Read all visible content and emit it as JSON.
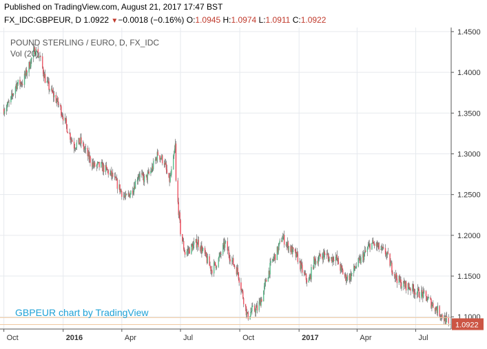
{
  "header": {
    "published": "Published on TradingView.com, August 21, 2017 17:47 BST",
    "symbol": "FX_IDC:GBPEUR, D",
    "last": "1.0922",
    "change": "−0.0018 (−0.16%)",
    "o_label": "O:",
    "o_value": "1.0945",
    "h_label": "H:",
    "h_value": "1.0974",
    "l_label": "L:",
    "l_value": "1.0911",
    "c_label": "C:",
    "c_value": "1.0922"
  },
  "colors": {
    "up": "#53b987",
    "down": "#eb4d5c",
    "badge": "#cc5544",
    "watermark": "#1ea1d6",
    "grid": "#e6e9ee"
  },
  "chart_data": {
    "type": "candlestick",
    "title": "POUND STERLING / EURO, D, FX_IDC",
    "subtitle": "Vol (20)",
    "watermark": "GBPEUR chart by TradingView",
    "y_ticks": [
      "1.4500",
      "1.4000",
      "1.3500",
      "1.3000",
      "1.2500",
      "1.2000",
      "1.1500",
      "1.1000"
    ],
    "ylim": [
      1.085,
      1.455
    ],
    "x_ticks": [
      "Oct",
      "2016",
      "Apr",
      "Jul",
      "Oct",
      "2017",
      "Apr",
      "Jul"
    ],
    "last_price_label": "1.0922",
    "last_price": 1.0922,
    "reference_level": 1.099,
    "anchors": [
      [
        "2015-10-01",
        1.355
      ],
      [
        "2015-10-10",
        1.362
      ],
      [
        "2015-10-20",
        1.385
      ],
      [
        "2015-10-30",
        1.388
      ],
      [
        "2015-11-10",
        1.41
      ],
      [
        "2015-11-18",
        1.428
      ],
      [
        "2015-11-26",
        1.418
      ],
      [
        "2015-12-04",
        1.392
      ],
      [
        "2015-12-12",
        1.378
      ],
      [
        "2015-12-20",
        1.368
      ],
      [
        "2015-12-28",
        1.355
      ],
      [
        "2016-01-08",
        1.33
      ],
      [
        "2016-01-18",
        1.31
      ],
      [
        "2016-01-28",
        1.315
      ],
      [
        "2016-02-08",
        1.298
      ],
      [
        "2016-02-18",
        1.285
      ],
      [
        "2016-02-28",
        1.285
      ],
      [
        "2016-03-08",
        1.28
      ],
      [
        "2016-03-18",
        1.272
      ],
      [
        "2016-03-28",
        1.258
      ],
      [
        "2016-04-07",
        1.245
      ],
      [
        "2016-04-17",
        1.255
      ],
      [
        "2016-04-27",
        1.275
      ],
      [
        "2016-05-07",
        1.268
      ],
      [
        "2016-05-17",
        1.28
      ],
      [
        "2016-05-27",
        1.3
      ],
      [
        "2016-06-06",
        1.29
      ],
      [
        "2016-06-13",
        1.265
      ],
      [
        "2016-06-18",
        1.28
      ],
      [
        "2016-06-23",
        1.31
      ],
      [
        "2016-06-24",
        1.265
      ],
      [
        "2016-07-01",
        1.205
      ],
      [
        "2016-07-08",
        1.178
      ],
      [
        "2016-07-18",
        1.185
      ],
      [
        "2016-07-28",
        1.192
      ],
      [
        "2016-08-08",
        1.175
      ],
      [
        "2016-08-18",
        1.158
      ],
      [
        "2016-08-28",
        1.168
      ],
      [
        "2016-09-08",
        1.19
      ],
      [
        "2016-09-18",
        1.17
      ],
      [
        "2016-09-28",
        1.155
      ],
      [
        "2016-10-06",
        1.125
      ],
      [
        "2016-10-13",
        1.1
      ],
      [
        "2016-10-20",
        1.108
      ],
      [
        "2016-10-28",
        1.11
      ],
      [
        "2016-11-05",
        1.125
      ],
      [
        "2016-11-12",
        1.148
      ],
      [
        "2016-11-20",
        1.168
      ],
      [
        "2016-11-28",
        1.18
      ],
      [
        "2016-12-06",
        1.198
      ],
      [
        "2016-12-14",
        1.188
      ],
      [
        "2016-12-22",
        1.18
      ],
      [
        "2016-12-30",
        1.172
      ],
      [
        "2017-01-08",
        1.152
      ],
      [
        "2017-01-16",
        1.142
      ],
      [
        "2017-01-24",
        1.168
      ],
      [
        "2017-02-01",
        1.172
      ],
      [
        "2017-02-10",
        1.178
      ],
      [
        "2017-02-18",
        1.17
      ],
      [
        "2017-02-26",
        1.175
      ],
      [
        "2017-03-06",
        1.16
      ],
      [
        "2017-03-14",
        1.148
      ],
      [
        "2017-03-22",
        1.15
      ],
      [
        "2017-03-30",
        1.162
      ],
      [
        "2017-04-07",
        1.17
      ],
      [
        "2017-04-15",
        1.18
      ],
      [
        "2017-04-22",
        1.19
      ],
      [
        "2017-04-30",
        1.188
      ],
      [
        "2017-05-08",
        1.182
      ],
      [
        "2017-05-16",
        1.178
      ],
      [
        "2017-05-24",
        1.162
      ],
      [
        "2017-06-01",
        1.148
      ],
      [
        "2017-06-09",
        1.14
      ],
      [
        "2017-06-17",
        1.138
      ],
      [
        "2017-06-25",
        1.135
      ],
      [
        "2017-07-03",
        1.13
      ],
      [
        "2017-07-11",
        1.128
      ],
      [
        "2017-07-19",
        1.122
      ],
      [
        "2017-07-27",
        1.115
      ],
      [
        "2017-08-04",
        1.108
      ],
      [
        "2017-08-12",
        1.1
      ],
      [
        "2017-08-21",
        1.092
      ]
    ]
  }
}
